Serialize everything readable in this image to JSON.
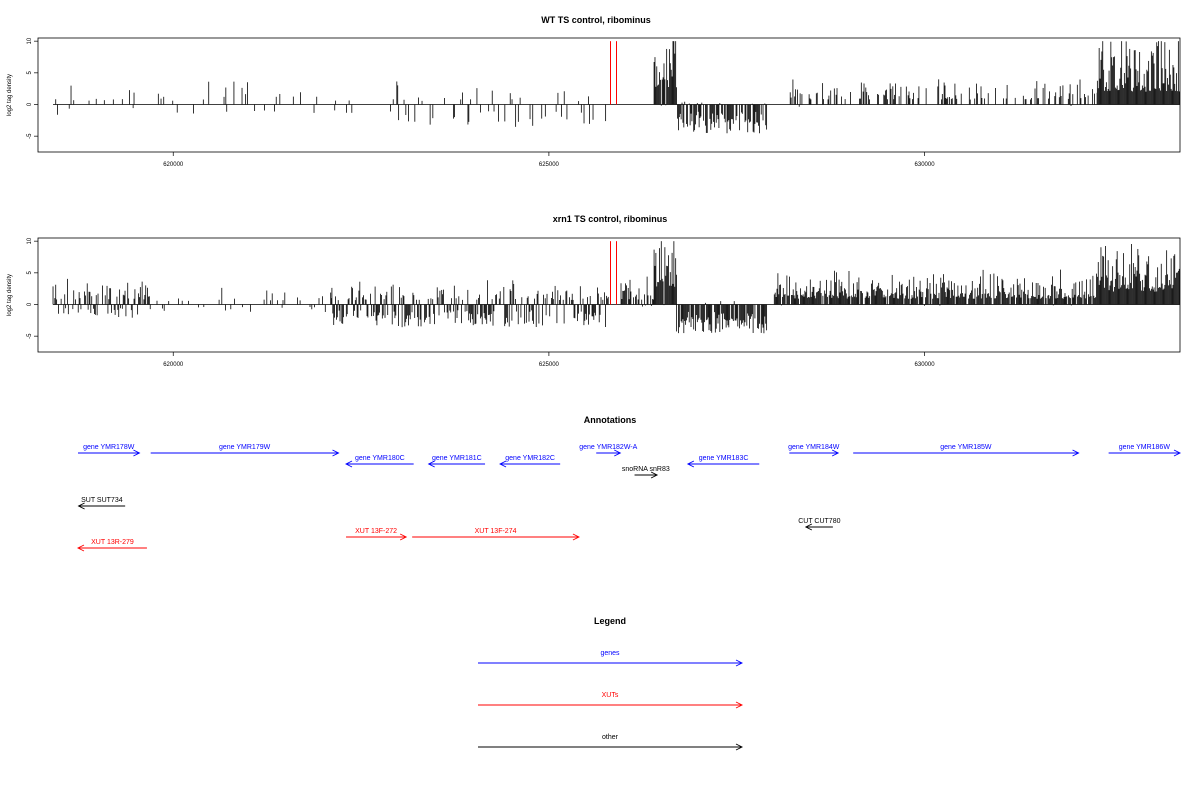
{
  "colors": {
    "gene": "#0000ff",
    "xut": "#ff0000",
    "other": "#000000",
    "marker": "#ff0000",
    "bars": "#000000"
  },
  "tracks": [
    {
      "id": "wt",
      "title": "WT TS control, ribominus",
      "ylabel": "log2 tag density"
    },
    {
      "id": "xrn1",
      "title": "xrn1 TS control, ribominus",
      "ylabel": "log2 tag density"
    }
  ],
  "annotations_title": "Annotations",
  "legend_title": "Legend",
  "legend_items": [
    {
      "label": "genes",
      "type": "gene"
    },
    {
      "label": "XUTs",
      "type": "xut"
    },
    {
      "label": "other",
      "type": "other"
    }
  ],
  "chart_data": [
    {
      "type": "bar",
      "title": "WT TS control, ribominus",
      "xlabel": "",
      "ylabel": "log2 tag density",
      "xlim": [
        618200,
        633400
      ],
      "ylim": [
        -7.5,
        10.5
      ],
      "xticks": [
        620000,
        625000,
        630000
      ],
      "xtick_labels": [
        "620000",
        "625000",
        "630000"
      ],
      "yticks": [
        -5,
        0,
        5,
        10
      ],
      "ytick_labels": [
        "-5",
        "0",
        "5",
        "10"
      ],
      "data_range": [
        618400,
        633400
      ],
      "markers": [
        625820,
        625900
      ],
      "seed": 11,
      "regions": [
        {
          "from": 618400,
          "to": 623000,
          "density": 0.12,
          "pos": 2.0,
          "neg": 1.6,
          "negp": 0.35
        },
        {
          "from": 623000,
          "to": 625800,
          "density": 0.25,
          "pos": 1.8,
          "neg": 3.0,
          "negp": 0.65
        },
        {
          "from": 626400,
          "to": 626700,
          "density": 1.0,
          "pos": 8.5,
          "neg": 0.3,
          "negp": 0.1
        },
        {
          "from": 626700,
          "to": 627900,
          "density": 0.75,
          "pos": 0.4,
          "neg": 3.8,
          "negp": 0.92
        },
        {
          "from": 628200,
          "to": 632300,
          "density": 0.35,
          "pos": 2.6,
          "neg": 0.3,
          "negp": 0.02
        },
        {
          "from": 632300,
          "to": 633400,
          "density": 1.0,
          "pos": 6.8,
          "neg": 0.2,
          "negp": 0.0
        }
      ]
    },
    {
      "type": "bar",
      "title": "xrn1 TS control, ribominus",
      "xlabel": "",
      "ylabel": "log2 tag density",
      "xlim": [
        618200,
        633400
      ],
      "ylim": [
        -7.5,
        10.5
      ],
      "xticks": [
        620000,
        625000,
        630000
      ],
      "xtick_labels": [
        "620000",
        "625000",
        "630000"
      ],
      "yticks": [
        -5,
        0,
        5,
        10
      ],
      "ytick_labels": [
        "-5",
        "0",
        "5",
        "10"
      ],
      "data_range": [
        618400,
        633400
      ],
      "markers": [
        625820,
        625900
      ],
      "seed": 29,
      "regions": [
        {
          "from": 618400,
          "to": 619700,
          "density": 0.7,
          "pos": 2.6,
          "neg": 1.8,
          "negp": 0.4
        },
        {
          "from": 619700,
          "to": 622100,
          "density": 0.18,
          "pos": 1.8,
          "neg": 1.2,
          "negp": 0.25
        },
        {
          "from": 622100,
          "to": 625800,
          "density": 0.75,
          "pos": 2.3,
          "neg": 3.0,
          "negp": 0.55
        },
        {
          "from": 625900,
          "to": 626400,
          "density": 0.5,
          "pos": 2.5,
          "neg": 0.4,
          "negp": 0.1
        },
        {
          "from": 626400,
          "to": 626700,
          "density": 1.0,
          "pos": 8.5,
          "neg": 0.3,
          "negp": 0.1
        },
        {
          "from": 626700,
          "to": 627900,
          "density": 0.8,
          "pos": 0.4,
          "neg": 3.8,
          "negp": 0.92
        },
        {
          "from": 628000,
          "to": 632300,
          "density": 0.9,
          "pos": 3.0,
          "neg": 0.2,
          "negp": 0.02
        },
        {
          "from": 632300,
          "to": 633400,
          "density": 1.0,
          "pos": 6.8,
          "neg": 0.2,
          "negp": 0.0
        }
      ]
    }
  ],
  "annotations": [
    {
      "label": "gene YMR178W",
      "type": "gene",
      "start": 618500,
      "end": 619550,
      "dir": "+",
      "row": 0
    },
    {
      "label": "gene YMR179W",
      "type": "gene",
      "start": 619700,
      "end": 622200,
      "dir": "+",
      "row": 0
    },
    {
      "label": "gene YMR180C",
      "type": "gene",
      "start": 622300,
      "end": 623200,
      "dir": "-",
      "row": 1
    },
    {
      "label": "gene YMR181C",
      "type": "gene",
      "start": 623400,
      "end": 624150,
      "dir": "-",
      "row": 1
    },
    {
      "label": "gene YMR182C",
      "type": "gene",
      "start": 624350,
      "end": 625150,
      "dir": "-",
      "row": 1
    },
    {
      "label": "gene YMR182W-A",
      "type": "gene",
      "start": 625630,
      "end": 625950,
      "dir": "+",
      "row": 0
    },
    {
      "label": "snoRNA snR83",
      "type": "other",
      "start": 626140,
      "end": 626440,
      "dir": "+",
      "row": 2
    },
    {
      "label": "gene YMR183C",
      "type": "gene",
      "start": 626850,
      "end": 627800,
      "dir": "-",
      "row": 1
    },
    {
      "label": "gene YMR184W",
      "type": "gene",
      "start": 628200,
      "end": 628850,
      "dir": "+",
      "row": 0
    },
    {
      "label": "gene YMR185W",
      "type": "gene",
      "start": 629050,
      "end": 632050,
      "dir": "+",
      "row": 0
    },
    {
      "label": "gene YMR186W",
      "type": "gene",
      "start": 632450,
      "end": 634000,
      "dir": "+",
      "row": 0
    },
    {
      "label": "SUT SUT734",
      "type": "other",
      "start": 618740,
      "end": 619360,
      "dir": "-",
      "row": 3
    },
    {
      "label": "CUT CUT780",
      "type": "other",
      "start": 628420,
      "end": 628780,
      "dir": "-",
      "row": 4
    },
    {
      "label": "XUT 13F-272",
      "type": "xut",
      "start": 622300,
      "end": 623100,
      "dir": "+",
      "row": 5
    },
    {
      "label": "XUT 13F-274",
      "type": "xut",
      "start": 623180,
      "end": 625400,
      "dir": "+",
      "row": 5
    },
    {
      "label": "XUT 13R-279",
      "type": "xut",
      "start": 618400,
      "end": 619650,
      "dir": "-",
      "row": 6
    }
  ]
}
